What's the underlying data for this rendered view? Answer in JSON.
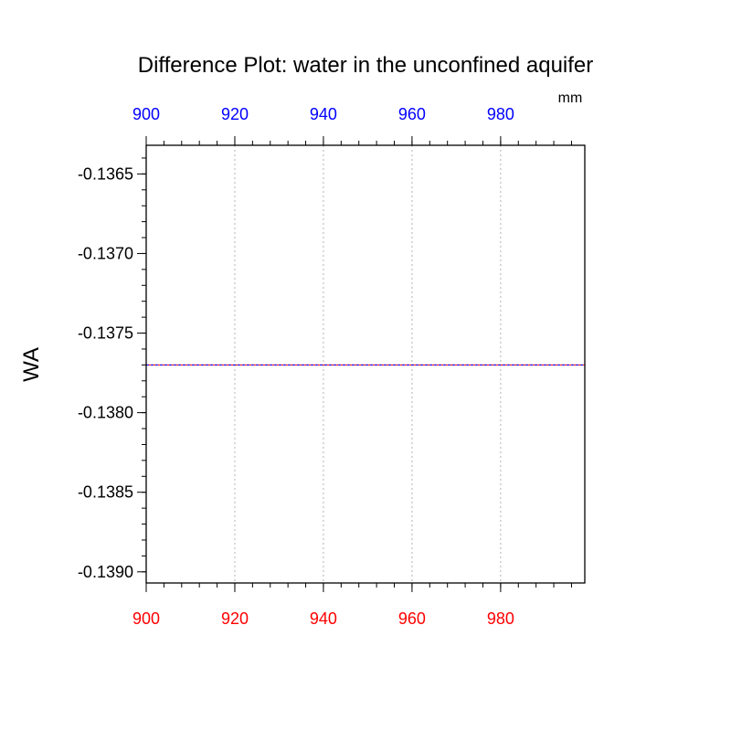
{
  "chart_data": {
    "type": "line",
    "title": "Difference Plot: water in the unconfined aquifer",
    "units_label": "mm",
    "ylabel": "WA",
    "xlim": [
      900,
      999
    ],
    "ylim": [
      -0.13907,
      -0.13632
    ],
    "x_ticks_bottom": [
      900,
      920,
      940,
      960,
      980
    ],
    "x_ticks_top": [
      900,
      920,
      940,
      960,
      980
    ],
    "y_ticks": [
      -0.1365,
      -0.137,
      -0.1375,
      -0.138,
      -0.1385,
      -0.139
    ],
    "y_tick_labels": [
      "-0.1365",
      "-0.1370",
      "-0.1375",
      "-0.1380",
      "-0.1385",
      "-0.1390"
    ],
    "x_minor_step": 4,
    "y_minor_step": 0.0001,
    "grid": "vertical dotted at major x ticks",
    "bottom_axis_color": "#ff0000",
    "top_axis_color": "#0000ff",
    "series": [
      {
        "x": [
          900,
          999
        ],
        "y": [
          -0.1377,
          -0.1377
        ],
        "color": "#ff0000",
        "style": "solid"
      },
      {
        "x": [
          900,
          999
        ],
        "y": [
          -0.1377,
          -0.1377
        ],
        "color": "#0000ff",
        "style": "dashed"
      }
    ]
  }
}
